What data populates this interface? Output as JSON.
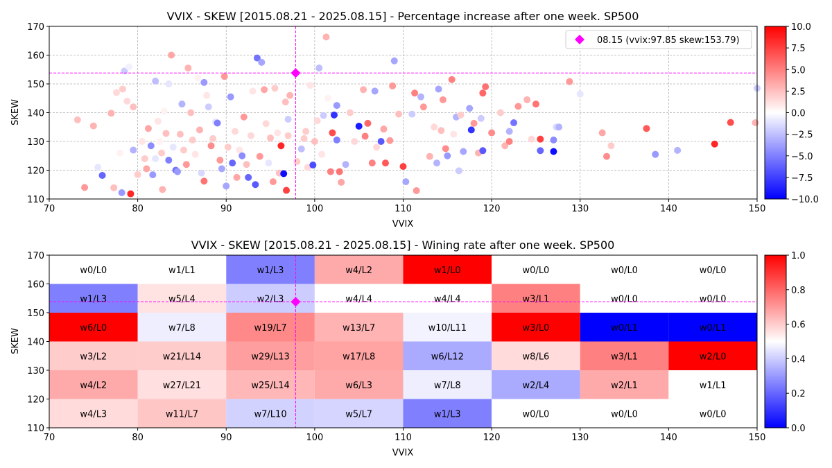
{
  "chart_data": [
    {
      "type": "scatter",
      "title": "VVIX - SKEW [2015.08.21 - 2025.08.15]  - Percentage increase after one week. SP500",
      "xlabel": "VVIX",
      "ylabel": "SKEW",
      "xlim": [
        70,
        150
      ],
      "ylim": [
        110,
        170
      ],
      "xticks": [
        70,
        80,
        90,
        100,
        110,
        120,
        130,
        140,
        150
      ],
      "yticks": [
        110,
        120,
        130,
        140,
        150,
        160,
        170
      ],
      "grid": true,
      "legend": {
        "position": "upper right",
        "label": "08.15 (vvix:97.85 skew:153.79)"
      },
      "colorbar": {
        "range": [
          -10,
          10
        ],
        "ticks": [
          -10.0,
          -7.5,
          -5.0,
          -2.5,
          0.0,
          2.5,
          5.0,
          7.5,
          10.0
        ],
        "colormap": "bwr"
      },
      "current_point": {
        "x": 97.85,
        "y": 153.79,
        "color": "#ff00ff",
        "marker": "diamond"
      },
      "points": [
        [
          73.2,
          137.5,
          2.5
        ],
        [
          74.0,
          114.0,
          4.0
        ],
        [
          75.0,
          135.4,
          3.0
        ],
        [
          75.5,
          121.0,
          -1.0
        ],
        [
          76.0,
          118.2,
          -6.0
        ],
        [
          77.0,
          139.8,
          3.0
        ],
        [
          77.3,
          113.9,
          2.5
        ],
        [
          77.6,
          147.0,
          1.5
        ],
        [
          78.0,
          126.0,
          0.5
        ],
        [
          78.2,
          112.2,
          -4.0
        ],
        [
          78.3,
          148.2,
          2.0
        ],
        [
          78.5,
          154.5,
          -2.0
        ],
        [
          78.8,
          144.0,
          1.5
        ],
        [
          79.0,
          155.9,
          -0.5
        ],
        [
          79.2,
          111.8,
          8.5
        ],
        [
          79.5,
          142.0,
          2.5
        ],
        [
          79.5,
          127.0,
          -3.0
        ],
        [
          80.0,
          118.5,
          2.0
        ],
        [
          80.5,
          130.0,
          1.0
        ],
        [
          80.8,
          124.0,
          2.0
        ],
        [
          81.0,
          120.5,
          3.5
        ],
        [
          81.2,
          134.5,
          3.5
        ],
        [
          81.5,
          128.5,
          -4.5
        ],
        [
          81.7,
          118.4,
          -4.0
        ],
        [
          82.0,
          151.0,
          -2.5
        ],
        [
          82.0,
          124.0,
          -1.0
        ],
        [
          82.3,
          137.0,
          1.0
        ],
        [
          82.5,
          130.0,
          0.5
        ],
        [
          82.7,
          126.0,
          2.0
        ],
        [
          82.8,
          113.3,
          3.0
        ],
        [
          83.0,
          140.5,
          0.5
        ],
        [
          83.2,
          132.8,
          2.5
        ],
        [
          83.5,
          123.5,
          -5.0
        ],
        [
          83.5,
          150.0,
          -1.0
        ],
        [
          83.8,
          160.0,
          3.5
        ],
        [
          84.0,
          128.0,
          -1.0
        ],
        [
          84.3,
          120.0,
          -5.5
        ],
        [
          84.5,
          119.5,
          -4.0
        ],
        [
          84.8,
          132.5,
          2.5
        ],
        [
          85.0,
          143.0,
          -3.0
        ],
        [
          85.2,
          127.0,
          2.0
        ],
        [
          85.5,
          122.0,
          4.0
        ],
        [
          85.7,
          155.5,
          3.0
        ],
        [
          86.0,
          140.0,
          2.5
        ],
        [
          86.2,
          130.5,
          2.0
        ],
        [
          86.5,
          125.5,
          1.0
        ],
        [
          86.8,
          152.0,
          0.5
        ],
        [
          87.0,
          134.0,
          3.0
        ],
        [
          87.2,
          119.0,
          -1.5
        ],
        [
          87.5,
          116.2,
          5.5
        ],
        [
          87.5,
          150.5,
          -4.0
        ],
        [
          87.8,
          146.0,
          1.0
        ],
        [
          88.0,
          142.0,
          -2.0
        ],
        [
          88.3,
          128.5,
          4.5
        ],
        [
          88.5,
          131.0,
          2.0
        ],
        [
          88.8,
          136.8,
          -1.0
        ],
        [
          89.0,
          136.4,
          -5.0
        ],
        [
          89.3,
          123.5,
          4.0
        ],
        [
          89.5,
          120.5,
          -3.5
        ],
        [
          89.8,
          152.6,
          4.0
        ],
        [
          90.0,
          114.5,
          -3.5
        ],
        [
          90.2,
          128.0,
          2.0
        ],
        [
          90.5,
          145.5,
          -4.0
        ],
        [
          90.7,
          122.5,
          -6.0
        ],
        [
          91.0,
          133.5,
          1.5
        ],
        [
          91.2,
          117.5,
          3.5
        ],
        [
          91.5,
          127.0,
          1.0
        ],
        [
          91.8,
          125.0,
          -4.5
        ],
        [
          92.0,
          138.5,
          4.0
        ],
        [
          92.3,
          122.0,
          2.5
        ],
        [
          92.5,
          117.5,
          -6.0
        ],
        [
          92.8,
          132.0,
          1.5
        ],
        [
          93.0,
          147.5,
          1.0
        ],
        [
          93.3,
          115.0,
          -6.5
        ],
        [
          93.5,
          159.0,
          -5.5
        ],
        [
          93.8,
          124.8,
          4.0
        ],
        [
          94.0,
          157.5,
          -3.5
        ],
        [
          94.3,
          148.0,
          3.5
        ],
        [
          94.5,
          136.2,
          1.5
        ],
        [
          94.8,
          122.5,
          -1.0
        ],
        [
          95.0,
          131.2,
          2.5
        ],
        [
          95.3,
          116.0,
          4.0
        ],
        [
          95.5,
          148.5,
          2.0
        ],
        [
          95.8,
          133.0,
          1.0
        ],
        [
          96.0,
          119.0,
          2.5
        ],
        [
          96.2,
          128.5,
          8.5
        ],
        [
          96.5,
          118.8,
          -9.5
        ],
        [
          96.7,
          143.7,
          2.5
        ],
        [
          96.8,
          113.0,
          7.5
        ],
        [
          97.0,
          137.7,
          -2.0
        ],
        [
          97.0,
          132.0,
          2.0
        ],
        [
          97.2,
          146.0,
          3.0
        ],
        [
          98.0,
          123.0,
          2.0
        ],
        [
          98.5,
          127.4,
          -2.5
        ],
        [
          98.8,
          131.0,
          2.0
        ],
        [
          99.0,
          133.5,
          2.0
        ],
        [
          99.2,
          121.0,
          1.5
        ],
        [
          99.5,
          149.5,
          1.0
        ],
        [
          99.8,
          121.8,
          -7.0
        ],
        [
          100.0,
          130.0,
          2.5
        ],
        [
          100.3,
          137.2,
          1.5
        ],
        [
          100.5,
          155.5,
          -2.5
        ],
        [
          100.8,
          125.5,
          1.0
        ],
        [
          101.0,
          139.0,
          -2.0
        ],
        [
          101.3,
          166.3,
          3.0
        ],
        [
          101.5,
          145.0,
          0.5
        ],
        [
          101.8,
          119.5,
          5.0
        ],
        [
          102.0,
          133.0,
          7.0
        ],
        [
          102.2,
          139.2,
          -8.0
        ],
        [
          102.5,
          142.5,
          -4.0
        ],
        [
          102.5,
          130.5,
          -5.0
        ],
        [
          102.8,
          119.5,
          5.5
        ],
        [
          103.0,
          115.8,
          3.5
        ],
        [
          103.5,
          122.0,
          -3.0
        ],
        [
          104.0,
          140.0,
          2.0
        ],
        [
          104.5,
          130.0,
          1.5
        ],
        [
          105.0,
          135.3,
          -9.0
        ],
        [
          105.5,
          148.0,
          3.0
        ],
        [
          105.7,
          131.8,
          5.0
        ],
        [
          106.0,
          136.3,
          6.0
        ],
        [
          106.5,
          122.5,
          5.0
        ],
        [
          106.8,
          147.5,
          -3.5
        ],
        [
          107.0,
          128.0,
          1.5
        ],
        [
          107.5,
          130.0,
          -6.5
        ],
        [
          107.8,
          134.3,
          3.5
        ],
        [
          108.0,
          122.5,
          6.5
        ],
        [
          108.5,
          130.3,
          4.0
        ],
        [
          108.8,
          149.3,
          4.0
        ],
        [
          109.0,
          158.0,
          -3.5
        ],
        [
          109.5,
          139.5,
          2.5
        ],
        [
          110.0,
          121.3,
          7.5
        ],
        [
          110.3,
          116.0,
          -3.5
        ],
        [
          111.0,
          139.5,
          -2.0
        ],
        [
          111.3,
          146.8,
          5.0
        ],
        [
          111.5,
          112.9,
          4.0
        ],
        [
          112.0,
          145.5,
          -3.0
        ],
        [
          112.3,
          142.0,
          4.0
        ],
        [
          113.0,
          124.8,
          3.0
        ],
        [
          113.5,
          135.0,
          1.5
        ],
        [
          113.8,
          122.5,
          -3.0
        ],
        [
          114.0,
          148.2,
          -3.5
        ],
        [
          114.3,
          133.8,
          2.5
        ],
        [
          114.5,
          144.5,
          4.0
        ],
        [
          114.8,
          127.5,
          4.5
        ],
        [
          115.0,
          125.0,
          -4.0
        ],
        [
          115.5,
          151.5,
          5.0
        ],
        [
          115.7,
          132.5,
          1.0
        ],
        [
          116.0,
          138.5,
          -3.0
        ],
        [
          116.3,
          119.8,
          -2.0
        ],
        [
          116.5,
          139.2,
          2.0
        ],
        [
          116.8,
          126.5,
          -3.5
        ],
        [
          117.5,
          141.5,
          -3.5
        ],
        [
          117.7,
          134.0,
          -8.0
        ],
        [
          118.0,
          136.3,
          4.0
        ],
        [
          118.5,
          126.0,
          3.0
        ],
        [
          118.8,
          138.0,
          -2.0
        ],
        [
          119.0,
          126.8,
          -6.5
        ],
        [
          119.0,
          146.8,
          6.0
        ],
        [
          119.3,
          149.0,
          5.5
        ],
        [
          120.0,
          133.0,
          4.5
        ],
        [
          121.0,
          140.0,
          2.0
        ],
        [
          121.5,
          128.5,
          3.0
        ],
        [
          122.0,
          133.5,
          -3.0
        ],
        [
          122.0,
          130.0,
          5.0
        ],
        [
          122.5,
          136.5,
          -5.5
        ],
        [
          123.0,
          142.2,
          4.0
        ],
        [
          124.0,
          144.5,
          3.0
        ],
        [
          124.5,
          130.8,
          1.5
        ],
        [
          125.0,
          143.0,
          5.5
        ],
        [
          125.5,
          126.8,
          -6.0
        ],
        [
          125.5,
          130.8,
          7.5
        ],
        [
          127.0,
          126.5,
          -9.5
        ],
        [
          127.0,
          130.5,
          -4.5
        ],
        [
          127.3,
          135.0,
          -1.5
        ],
        [
          127.6,
          135.0,
          -3.0
        ],
        [
          128.8,
          150.8,
          4.0
        ],
        [
          130.0,
          146.5,
          -1.0
        ],
        [
          132.5,
          133.0,
          3.5
        ],
        [
          133.0,
          124.8,
          4.5
        ],
        [
          133.5,
          128.5,
          2.0
        ],
        [
          137.5,
          134.5,
          6.5
        ],
        [
          138.5,
          125.5,
          -4.0
        ],
        [
          141.0,
          126.9,
          -3.0
        ],
        [
          145.2,
          129.1,
          8.5
        ],
        [
          147.0,
          136.6,
          7.0
        ],
        [
          149.8,
          136.5,
          3.0
        ],
        [
          150.0,
          148.5,
          -2.0
        ]
      ]
    },
    {
      "type": "heatmap",
      "title": "VVIX - SKEW [2015.08.21 - 2025.08.15]  - Wining rate after one week. SP500",
      "xlabel": "VVIX",
      "ylabel": "SKEW",
      "xlim": [
        70,
        150
      ],
      "ylim": [
        110,
        170
      ],
      "xticks": [
        70,
        80,
        90,
        100,
        110,
        120,
        130,
        140,
        150
      ],
      "yticks": [
        110,
        120,
        130,
        140,
        150,
        160,
        170
      ],
      "x_edges": [
        70,
        80,
        90,
        100,
        110,
        120,
        130,
        140,
        150
      ],
      "y_edges": [
        110,
        120,
        130,
        140,
        150,
        160,
        170
      ],
      "colorbar": {
        "range": [
          0,
          1
        ],
        "ticks": [
          0.0,
          0.2,
          0.4,
          0.6,
          0.8,
          1.0
        ],
        "colormap": "bwr"
      },
      "current_point": {
        "x": 97.85,
        "y": 153.79,
        "color": "#ff00ff",
        "marker": "diamond"
      },
      "rows_top_to_bottom": [
        {
          "skew_range": "160-170",
          "cells": [
            "w0/L0",
            "w1/L1",
            "w1/L3",
            "w4/L2",
            "w1/L0",
            "w0/L0",
            "w0/L0",
            "w0/L0"
          ]
        },
        {
          "skew_range": "150-160",
          "cells": [
            "w1/L3",
            "w5/L4",
            "w2/L3",
            "w4/L4",
            "w4/L4",
            "w3/L1",
            "w0/L0",
            "w0/L0"
          ]
        },
        {
          "skew_range": "140-150",
          "cells": [
            "w6/L0",
            "w7/L8",
            "w19/L7",
            "w13/L7",
            "w10/L11",
            "w3/L0",
            "w0/L1",
            "w0/L1"
          ]
        },
        {
          "skew_range": "130-140",
          "cells": [
            "w3/L2",
            "w21/L14",
            "w29/L13",
            "w17/L8",
            "w6/L12",
            "w8/L6",
            "w3/L1",
            "w2/L0"
          ]
        },
        {
          "skew_range": "120-130",
          "cells": [
            "w4/L2",
            "w27/L21",
            "w25/L14",
            "w6/L3",
            "w7/L8",
            "w2/L4",
            "w2/L1",
            "w1/L1"
          ]
        },
        {
          "skew_range": "110-120",
          "cells": [
            "w4/L3",
            "w11/L7",
            "w7/L10",
            "w5/L7",
            "w1/L3",
            "w0/L0",
            "w0/L0",
            "w0/L0"
          ]
        }
      ]
    }
  ]
}
